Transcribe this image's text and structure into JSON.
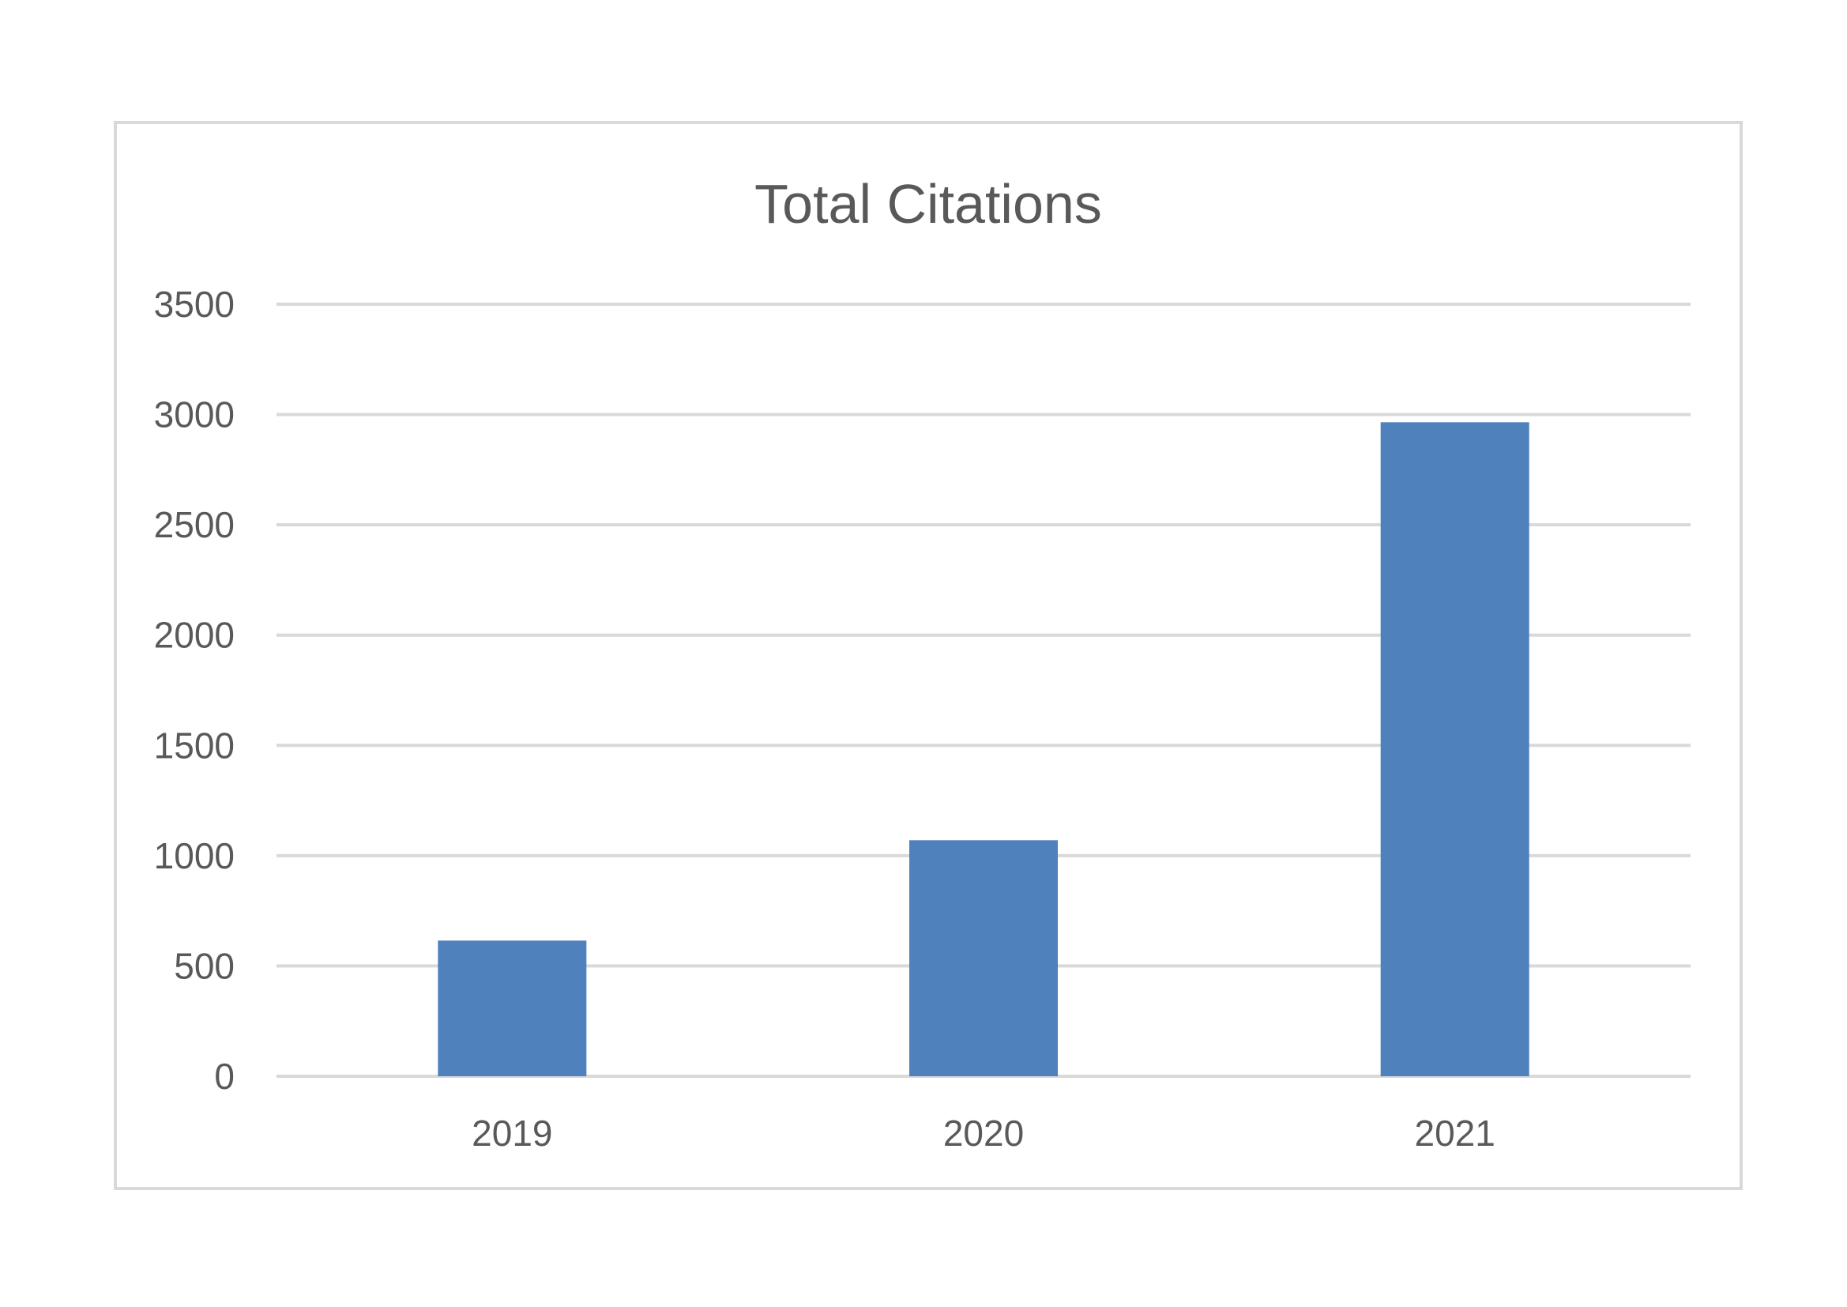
{
  "chart_data": {
    "type": "bar",
    "title": "Total Citations",
    "categories": [
      "2019",
      "2020",
      "2021"
    ],
    "values": [
      615,
      1070,
      2965
    ],
    "ylim": [
      0,
      3500
    ],
    "yticks": [
      0,
      500,
      1000,
      1500,
      2000,
      2500,
      3000,
      3500
    ],
    "grid": true,
    "legend": "none",
    "colors": {
      "bar": "#4f81bd",
      "grid": "#d9d9d9",
      "text": "#595959",
      "border": "#d9d9d9"
    }
  }
}
